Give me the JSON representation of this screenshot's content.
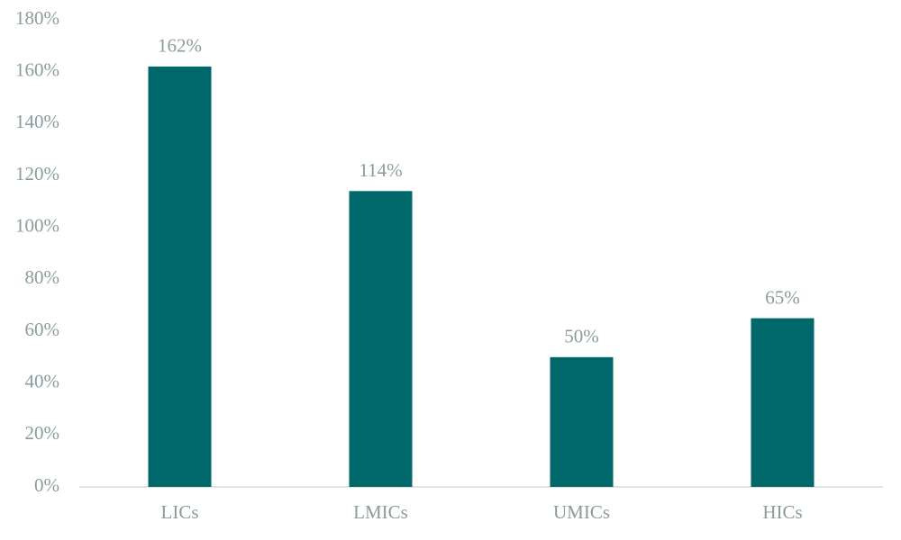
{
  "chart_data": {
    "type": "bar",
    "categories": [
      "LICs",
      "LMICs",
      "UMICs",
      "HICs"
    ],
    "values": [
      162,
      114,
      50,
      65
    ],
    "value_labels": [
      "162%",
      "114%",
      "50%",
      "65%"
    ],
    "color": "#00686b",
    "ylim": [
      0,
      180
    ],
    "yticks": [
      {
        "value": 0,
        "label": "0%"
      },
      {
        "value": 20,
        "label": "20%"
      },
      {
        "value": 40,
        "label": "40%"
      },
      {
        "value": 60,
        "label": "60%"
      },
      {
        "value": 80,
        "label": "80%"
      },
      {
        "value": 100,
        "label": "100%"
      },
      {
        "value": 120,
        "label": "120%"
      },
      {
        "value": 140,
        "label": "140%"
      },
      {
        "value": 160,
        "label": "160%"
      },
      {
        "value": 180,
        "label": "180%"
      }
    ],
    "grid": false
  }
}
